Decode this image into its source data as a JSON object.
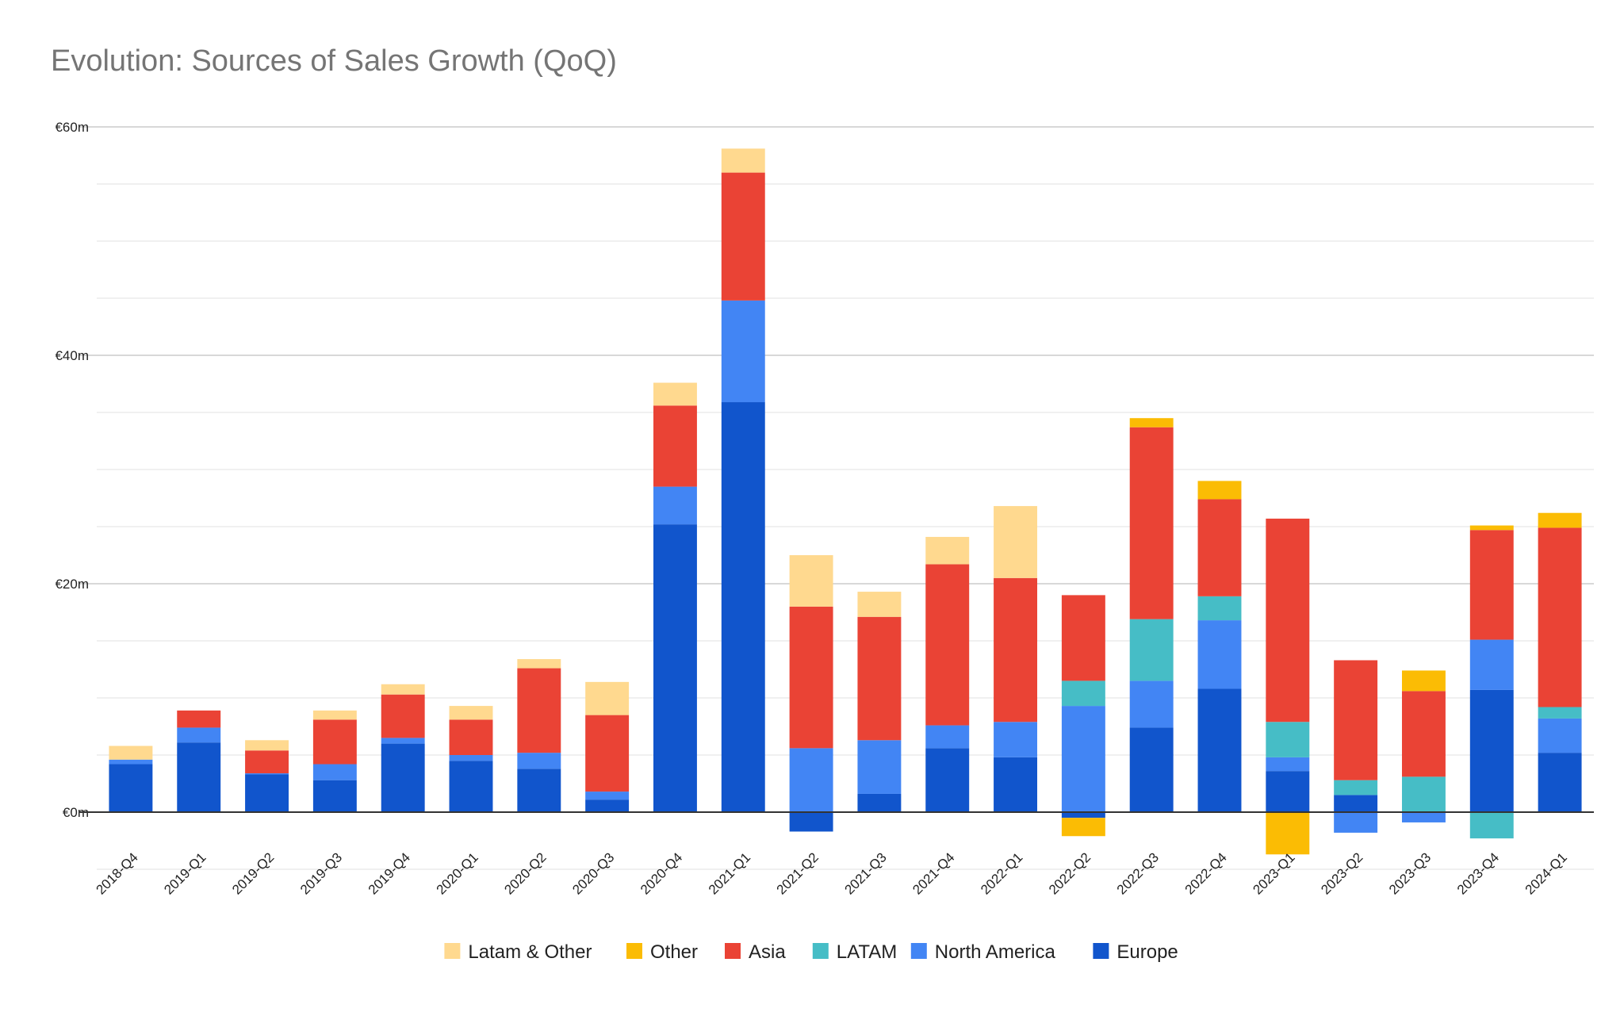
{
  "chart_data": {
    "type": "bar",
    "stacked": true,
    "title": "Evolution: Sources of Sales Growth (QoQ)",
    "xlabel": "",
    "ylabel": "",
    "ylim": [
      -7.5,
      60
    ],
    "y_ticks": [
      0,
      20,
      40,
      60
    ],
    "y_tick_labels": [
      "€0m",
      "€20m",
      "€40m",
      "€60m"
    ],
    "grid": true,
    "legend_position": "bottom",
    "categories": [
      "2018-Q4",
      "2019-Q1",
      "2019-Q2",
      "2019-Q3",
      "2019-Q4",
      "2020-Q1",
      "2020-Q2",
      "2020-Q3",
      "2020-Q4",
      "2021-Q1",
      "2021-Q2",
      "2021-Q3",
      "2021-Q4",
      "2022-Q1",
      "2022-Q2",
      "2022-Q3",
      "2022-Q4",
      "2023-Q1",
      "2023-Q2",
      "2023-Q3",
      "2023-Q4",
      "2024-Q1"
    ],
    "series": [
      {
        "name": "Europe",
        "color": "#1155cc",
        "values": [
          4.2,
          6.1,
          3.3,
          2.8,
          6.0,
          4.5,
          3.8,
          1.1,
          25.2,
          35.9,
          -1.7,
          1.6,
          5.6,
          4.8,
          -0.5,
          7.4,
          10.8,
          3.6,
          1.5,
          0.0,
          10.7,
          5.2
        ]
      },
      {
        "name": "North America",
        "color": "#4285f4",
        "values": [
          0.4,
          1.3,
          0.1,
          1.4,
          0.5,
          0.5,
          1.4,
          0.7,
          3.3,
          8.9,
          5.6,
          4.7,
          2.0,
          3.1,
          9.3,
          4.1,
          6.0,
          1.2,
          -1.8,
          -0.9,
          4.4,
          3.0
        ]
      },
      {
        "name": "LATAM",
        "color": "#46bdc6",
        "values": [
          0,
          0,
          0,
          0,
          0,
          0,
          0,
          0,
          0,
          0,
          0,
          0,
          0,
          0,
          2.2,
          5.4,
          2.1,
          3.1,
          1.3,
          3.1,
          -2.3,
          1.0
        ]
      },
      {
        "name": "Asia",
        "color": "#ea4335",
        "values": [
          0,
          1.5,
          2.0,
          3.9,
          3.8,
          3.1,
          7.4,
          6.7,
          7.1,
          11.2,
          12.4,
          10.8,
          14.1,
          12.6,
          7.5,
          16.8,
          8.5,
          17.8,
          10.5,
          7.5,
          9.6,
          15.7
        ]
      },
      {
        "name": "Other",
        "color": "#fbbc04",
        "values": [
          0,
          0,
          0,
          0,
          0,
          0,
          0,
          0,
          0,
          0,
          0,
          0,
          0,
          0,
          -1.6,
          0.8,
          1.6,
          -3.7,
          0,
          1.8,
          0.4,
          1.3
        ]
      },
      {
        "name": "Latam & Other",
        "color": "#ffd98f",
        "values": [
          1.2,
          0,
          0.9,
          0.8,
          0.9,
          1.2,
          0.8,
          2.9,
          2.0,
          2.1,
          4.5,
          2.2,
          2.4,
          6.3,
          0,
          0,
          0,
          0,
          0,
          0,
          0,
          0
        ]
      }
    ],
    "legend_order": [
      "Latam & Other",
      "Other",
      "Asia",
      "LATAM",
      "North America",
      "Europe"
    ]
  }
}
